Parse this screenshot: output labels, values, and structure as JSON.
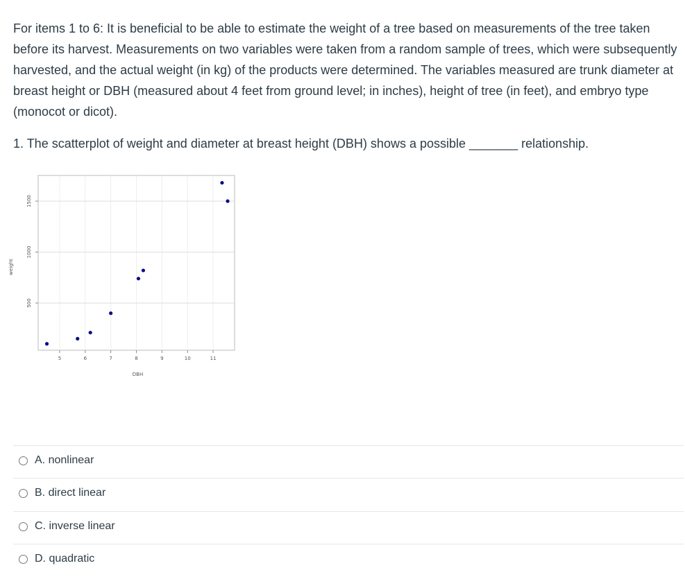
{
  "intro": "For items 1 to 6: It is beneficial to be able to estimate the weight of a tree based on measurements of the tree taken before its harvest. Measurements on two variables were taken from a random sample of trees, which were subsequently harvested, and the actual weight (in kg) of the products were determined. The variables measured are trunk diameter at breast height or DBH (measured about 4 feet from ground level; in inches), height of tree (in feet), and embryo type (monocot or dicot).",
  "question": {
    "before": "1. The scatterplot of weight and diameter at breast height (DBH) shows a possible",
    "blank": "_______",
    "after": "relationship."
  },
  "chart_data": {
    "type": "scatter",
    "xlabel": "DBH",
    "ylabel": "weight",
    "x": [
      4.5,
      5.7,
      6.2,
      7.0,
      8.08,
      8.27,
      11.35,
      11.57
    ],
    "values": [
      100,
      150,
      210,
      400,
      740,
      820,
      1680,
      1500
    ],
    "color": "#0b0b8a",
    "xlim": [
      4.16,
      11.84
    ],
    "xticks": [
      5,
      6,
      7,
      8,
      9,
      10,
      11
    ],
    "ylim": [
      37,
      1752
    ],
    "yticks": [
      500,
      1000,
      1500
    ],
    "grid": true
  },
  "options": [
    "A. nonlinear",
    "B. direct linear",
    "C. inverse linear",
    "D. quadratic"
  ]
}
